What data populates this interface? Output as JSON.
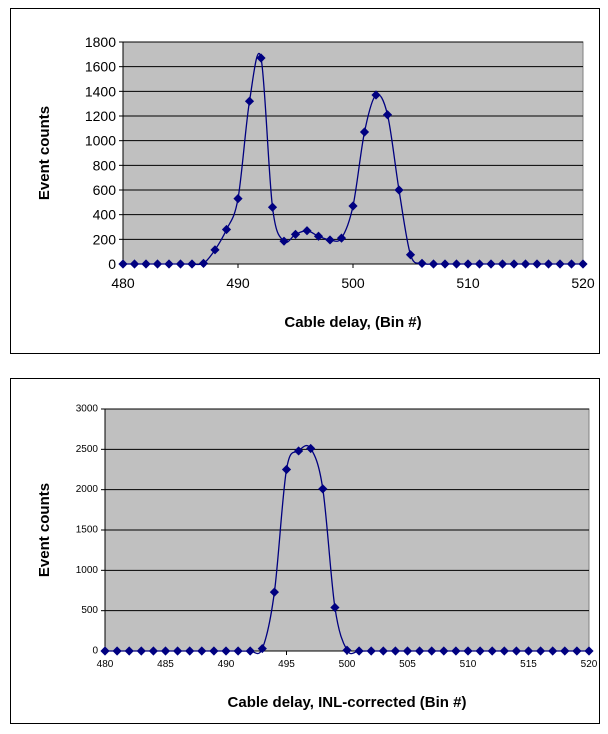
{
  "chart_data": [
    {
      "type": "line",
      "title": "",
      "xlabel": "Cable delay,  (Bin #)",
      "ylabel": "Event counts",
      "xlim": [
        480,
        520
      ],
      "ylim": [
        0,
        1800
      ],
      "x_ticks": [
        480,
        490,
        500,
        510,
        520
      ],
      "y_ticks": [
        0,
        200,
        400,
        600,
        800,
        1000,
        1200,
        1400,
        1600,
        1800
      ],
      "grid": true,
      "legend": "none",
      "series": [
        {
          "color": "#000080",
          "marker": "diamond",
          "x": [
            480,
            481,
            482,
            483,
            484,
            485,
            486,
            487,
            488,
            489,
            490,
            491,
            492,
            493,
            494,
            495,
            496,
            497,
            498,
            499,
            500,
            501,
            502,
            503,
            504,
            505,
            506,
            507,
            508,
            509,
            510,
            511,
            512,
            513,
            514,
            515,
            516,
            517,
            518,
            519,
            520
          ],
          "y": [
            0,
            0,
            0,
            0,
            0,
            0,
            0,
            5,
            115,
            280,
            530,
            1320,
            1670,
            460,
            185,
            240,
            270,
            225,
            195,
            210,
            470,
            1070,
            1370,
            1210,
            600,
            75,
            5,
            0,
            0,
            0,
            0,
            0,
            0,
            0,
            0,
            0,
            0,
            0,
            0,
            0,
            0
          ]
        }
      ]
    },
    {
      "type": "line",
      "title": "",
      "xlabel": "Cable delay, INL-corrected  (Bin #)",
      "ylabel": "Event counts",
      "xlim": [
        480,
        520
      ],
      "ylim": [
        0,
        3000
      ],
      "x_ticks": [
        480,
        485,
        490,
        495,
        500,
        505,
        510,
        515,
        520
      ],
      "y_ticks": [
        0,
        500,
        1000,
        1500,
        2000,
        2500,
        3000
      ],
      "grid": true,
      "legend": "none",
      "series": [
        {
          "color": "#000080",
          "marker": "diamond",
          "x": [
            480,
            481,
            482,
            483,
            484,
            485,
            486,
            487,
            488,
            489,
            490,
            491,
            492,
            493,
            494,
            495,
            496,
            497,
            498,
            499,
            500,
            501,
            502,
            503,
            504,
            505,
            506,
            507,
            508,
            509,
            510,
            511,
            512,
            513,
            514,
            515,
            516,
            517,
            518,
            519,
            520
          ],
          "y": [
            0,
            0,
            0,
            0,
            0,
            0,
            0,
            0,
            0,
            0,
            0,
            0,
            0,
            30,
            730,
            2250,
            2480,
            2510,
            2010,
            540,
            10,
            0,
            0,
            0,
            0,
            0,
            0,
            0,
            0,
            0,
            0,
            0,
            0,
            0,
            0,
            0,
            0,
            0,
            0,
            0,
            0
          ]
        }
      ]
    }
  ]
}
